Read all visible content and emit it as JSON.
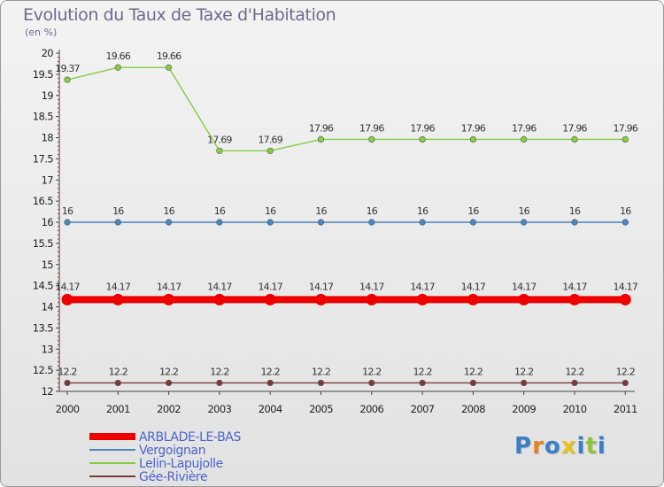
{
  "chart_data": {
    "type": "line",
    "title": "Evolution du Taux de Taxe d'Habitation",
    "subtitle": "(en %)",
    "xlabel": "",
    "ylabel": "",
    "ylim": [
      12,
      20
    ],
    "yticks": [
      "12",
      "12.5",
      "13",
      "13.5",
      "14",
      "14.5",
      "15",
      "15.5",
      "16",
      "16.5",
      "17",
      "17.5",
      "18",
      "18.5",
      "19",
      "19.5",
      "20"
    ],
    "categories": [
      "2000",
      "2001",
      "2002",
      "2003",
      "2004",
      "2005",
      "2006",
      "2007",
      "2008",
      "2009",
      "2010",
      "2011"
    ],
    "series": [
      {
        "name": "ARBLADE-LE-BAS",
        "color": "#ee0000",
        "values": [
          14.17,
          14.17,
          14.17,
          14.17,
          14.17,
          14.17,
          14.17,
          14.17,
          14.17,
          14.17,
          14.17,
          14.17
        ],
        "labels": [
          "14.17",
          "14.17",
          "14.17",
          "14.17",
          "14.17",
          "14.17",
          "14.17",
          "14.17",
          "14.17",
          "14.17",
          "14.17",
          "14.17"
        ]
      },
      {
        "name": "Vergoignan",
        "color": "#4a86bf",
        "values": [
          16,
          16,
          16,
          16,
          16,
          16,
          16,
          16,
          16,
          16,
          16,
          16
        ],
        "labels": [
          "16",
          "16",
          "16",
          "16",
          "16",
          "16",
          "16",
          "16",
          "16",
          "16",
          "16",
          "16"
        ]
      },
      {
        "name": "Lelin-Lapujolle",
        "color": "#88cc44",
        "values": [
          19.37,
          19.66,
          19.66,
          17.69,
          17.69,
          17.96,
          17.96,
          17.96,
          17.96,
          17.96,
          17.96,
          17.96
        ],
        "labels": [
          "19.37",
          "19.66",
          "19.66",
          "17.69",
          "17.69",
          "17.96",
          "17.96",
          "17.96",
          "17.96",
          "17.96",
          "17.96",
          "17.96"
        ]
      },
      {
        "name": "Gée-Rivière",
        "color": "#7a3a3a",
        "values": [
          12.2,
          12.2,
          12.2,
          12.2,
          12.2,
          12.2,
          12.2,
          12.2,
          12.2,
          12.2,
          12.2,
          12.2
        ],
        "labels": [
          "12.2",
          "12.2",
          "12.2",
          "12.2",
          "12.2",
          "12.2",
          "12.2",
          "12.2",
          "12.2",
          "12.2",
          "12.2",
          "12.2"
        ]
      }
    ],
    "legend": "bottom-left"
  },
  "logo": {
    "letters": [
      "P",
      "r",
      "o",
      "x",
      "i",
      "t",
      "i"
    ],
    "colors": [
      "#3a7fc8",
      "#e8821e",
      "#3a7fc8",
      "#e8c21e",
      "#3a7fc8",
      "#8cc43a",
      "#3a7fc8"
    ]
  }
}
